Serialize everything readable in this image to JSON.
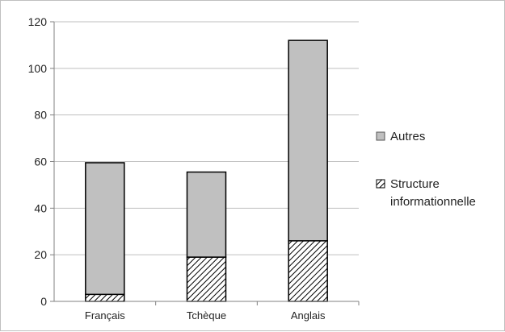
{
  "chart_data": {
    "type": "bar",
    "stacked": true,
    "categories": [
      "Français",
      "Tchèque",
      "Anglais"
    ],
    "series": [
      {
        "name": "Structure informationnelle",
        "values": [
          3,
          19,
          26
        ],
        "pattern": "hatched"
      },
      {
        "name": "Autres",
        "values": [
          56.5,
          36.5,
          86
        ],
        "color": "#c0c0c0"
      }
    ],
    "totals": [
      59.5,
      55.5,
      112
    ],
    "ylim": [
      0,
      120
    ],
    "yticks": [
      0,
      20,
      40,
      60,
      80,
      100,
      120
    ],
    "grid": true,
    "legend": {
      "placement": "right",
      "items": [
        {
          "label": "Autres",
          "swatch": "gray"
        },
        {
          "label_lines": [
            "Structure",
            "informationnelle"
          ],
          "swatch": "hatched"
        }
      ]
    }
  }
}
